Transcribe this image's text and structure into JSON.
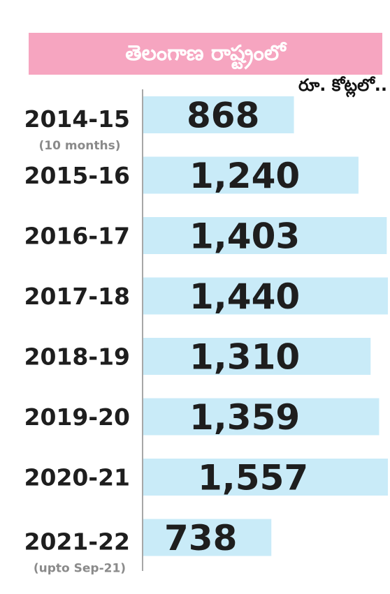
{
  "header": {
    "title": "తెలంగాణ రాష్ట్రంలో",
    "unit": "రూ. కోట్లలో.."
  },
  "colors": {
    "title_band": "#f6a5c0",
    "bar": "#c9ebf8",
    "axis": "#8a8a8a",
    "text": "#1e1e1e"
  },
  "chart_data": {
    "type": "bar",
    "orientation": "horizontal",
    "categories": [
      "2014-15",
      "2015-16",
      "2016-17",
      "2017-18",
      "2018-19",
      "2019-20",
      "2020-21",
      "2021-22"
    ],
    "category_notes": [
      "(10 months)",
      "",
      "",
      "",
      "",
      "",
      "",
      "(upto Sep-21)"
    ],
    "values": [
      868,
      1240,
      1403,
      1440,
      1310,
      1359,
      1557,
      738
    ],
    "value_labels": [
      "868",
      "1,240",
      "1,403",
      "1,440",
      "1,310",
      "1,359",
      "1,557",
      "738"
    ],
    "title": "",
    "xlabel": "",
    "ylabel": "",
    "grid": false,
    "legend": "none"
  }
}
